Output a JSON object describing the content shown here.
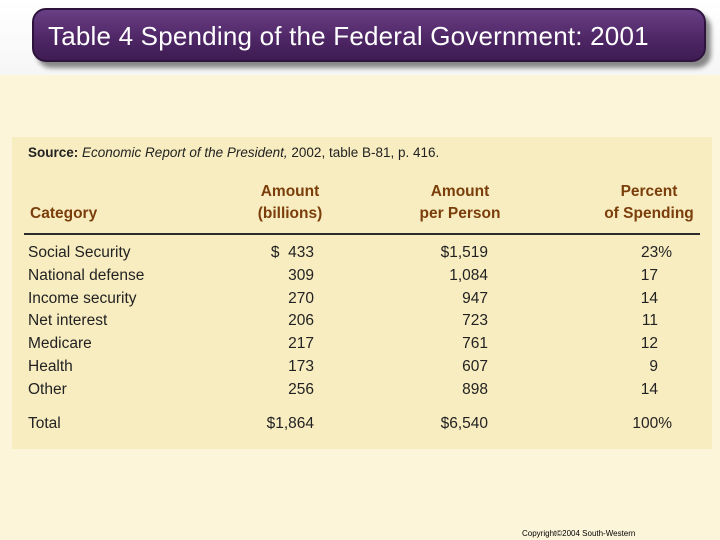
{
  "title": "Table 4 Spending of the Federal Government: 2001",
  "source": {
    "label": "Source:",
    "publication": "Economic Report of the President,",
    "details": "2002, table B-81, p. 416."
  },
  "headers": {
    "category": "Category",
    "amount_line1": "Amount",
    "amount_line2": "(billions)",
    "per_person_line1": "Amount",
    "per_person_line2": "per Person",
    "percent_line1": "Percent",
    "percent_line2": "of Spending"
  },
  "rows": [
    {
      "category": "Social Security",
      "amount": "$  433",
      "per_person": "$1,519",
      "percent": "23%"
    },
    {
      "category": "National defense",
      "amount": "309",
      "per_person": "1,084",
      "percent": "17"
    },
    {
      "category": "Income security",
      "amount": "270",
      "per_person": "947",
      "percent": "14"
    },
    {
      "category": "Net interest",
      "amount": "206",
      "per_person": "723",
      "percent": "11"
    },
    {
      "category": "Medicare",
      "amount": "217",
      "per_person": "761",
      "percent": "12"
    },
    {
      "category": "Health",
      "amount": "173",
      "per_person": "607",
      "percent": "9"
    },
    {
      "category": "Other",
      "amount": "256",
      "per_person": "898",
      "percent": "14"
    }
  ],
  "total": {
    "category": "Total",
    "amount": "$1,864",
    "per_person": "$6,540",
    "percent": "100%"
  },
  "footer": "Copyright©2004  South-Western",
  "colors": {
    "title_bar": "#4f2766",
    "body_background": "#fcf5da",
    "table_panel": "#f8edc1",
    "header_text": "#7a3e0a"
  }
}
